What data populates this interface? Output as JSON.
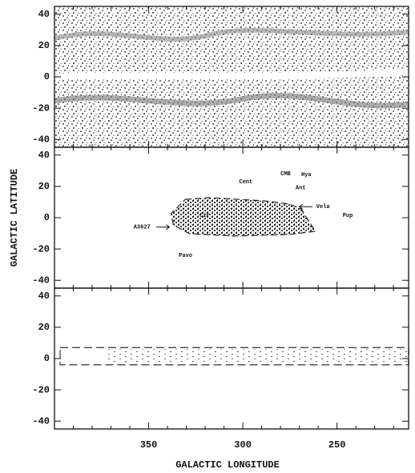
{
  "chart_data": [
    {
      "type": "density",
      "xlim": [
        400,
        212
      ],
      "ylim": [
        -45,
        45
      ],
      "yticks": [
        -40,
        -20,
        0,
        20,
        40
      ],
      "xticks": [
        350,
        300,
        250
      ],
      "xminor": [
        390,
        380,
        370,
        360,
        340,
        330,
        320,
        310,
        290,
        280,
        270,
        260,
        240,
        230,
        220
      ],
      "color": "#6e6e6e"
    },
    {
      "type": "region",
      "ylabel": "GALACTIC LATITUDE",
      "xlim": [
        400,
        212
      ],
      "ylim": [
        -45,
        45
      ],
      "yticks": [
        -40,
        -20,
        0,
        20,
        40
      ],
      "xticks": [
        350,
        300,
        250
      ],
      "xminor": [
        390,
        380,
        370,
        360,
        340,
        330,
        320,
        310,
        290,
        280,
        270,
        260,
        240,
        230,
        220
      ],
      "color": "#222222",
      "outline": {
        "l": [
          330.5,
          317.8,
          288.1,
          275.4,
          269,
          265.7,
          261.4,
          275.4,
          305.1,
          328.4,
          336.9,
          338.1
        ],
        "b": [
          11.7,
          12.8,
          10.7,
          8.7,
          5.6,
          -1,
          -8.7,
          -10.7,
          -11.7,
          -10.2,
          -4.6,
          2.6
        ]
      },
      "annotations": [
        {
          "text": "Cent",
          "l": 302,
          "b": 23
        },
        {
          "text": "CMB",
          "l": 280,
          "b": 28
        },
        {
          "text": "Hya",
          "l": 269,
          "b": 27.5
        },
        {
          "text": "Ant",
          "l": 272,
          "b": 19
        },
        {
          "text": "Vela",
          "l": 261,
          "b": 7
        },
        {
          "text": "Pup",
          "l": 247,
          "b": 1.5
        },
        {
          "text": "A3627",
          "l": 358,
          "b": -6
        },
        {
          "text": "Cir",
          "l": 323,
          "b": 1.5
        },
        {
          "text": "Pavo",
          "l": 334,
          "b": -24
        }
      ],
      "arrows": [
        {
          "l": [
            346,
            339
          ],
          "b": [
            -6,
            -6
          ]
        },
        {
          "l": [
            263,
            270
          ],
          "b": [
            7,
            7
          ]
        }
      ]
    },
    {
      "type": "region",
      "xlabel": "GALACTIC LONGITUDE",
      "xlim": [
        400,
        212
      ],
      "ylim": [
        -45,
        45
      ],
      "yticks": [
        -40,
        -20,
        0,
        20,
        40
      ],
      "xticks": [
        350,
        300,
        250
      ],
      "xminor": [
        390,
        380,
        370,
        360,
        340,
        330,
        320,
        310,
        290,
        280,
        270,
        260,
        240,
        230,
        220
      ],
      "color": "#444444",
      "box": {
        "l": [
          397,
          212
        ],
        "b": [
          -4,
          7
        ]
      }
    }
  ]
}
